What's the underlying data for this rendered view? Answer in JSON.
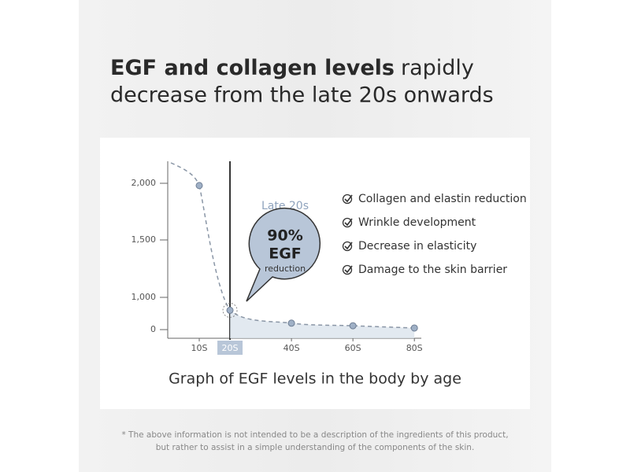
{
  "headline": {
    "bold": "EGF and collagen levels",
    "rest": "rapidly",
    "line2": "decrease from the late 20s onwards"
  },
  "chart_data": {
    "type": "line",
    "x": [
      10,
      20,
      40,
      60,
      80
    ],
    "values": [
      1980,
      600,
      200,
      120,
      50
    ],
    "color": "#8a96a6",
    "xlim": [
      0,
      82
    ],
    "xticks": [
      {
        "value": 10,
        "label": "10S"
      },
      {
        "value": 20,
        "label": "20S"
      },
      {
        "value": 40,
        "label": "40S"
      },
      {
        "value": 60,
        "label": "60S"
      },
      {
        "value": 80,
        "label": "80S"
      }
    ],
    "yticks": [
      0,
      {
        "value": 1000,
        "label": "1,000"
      },
      {
        "value": 1500,
        "label": "1,500"
      },
      {
        "value": 2000,
        "label": "2,000"
      }
    ],
    "highlight_label": "Late 20s",
    "bubble": {
      "value": "90%",
      "line2": "EGF",
      "line3": "reduction"
    },
    "caption": "Graph of EGF levels in the body by age"
  },
  "checklist": [
    "Collagen and elastin reduction",
    "Wrinkle development",
    "Decrease in elasticity",
    "Damage to the skin barrier"
  ],
  "footnote": [
    "* The above information is not intended to be a description of the ingredients of this product,",
    "but rather to assist in a simple understanding of the components of the skin."
  ]
}
